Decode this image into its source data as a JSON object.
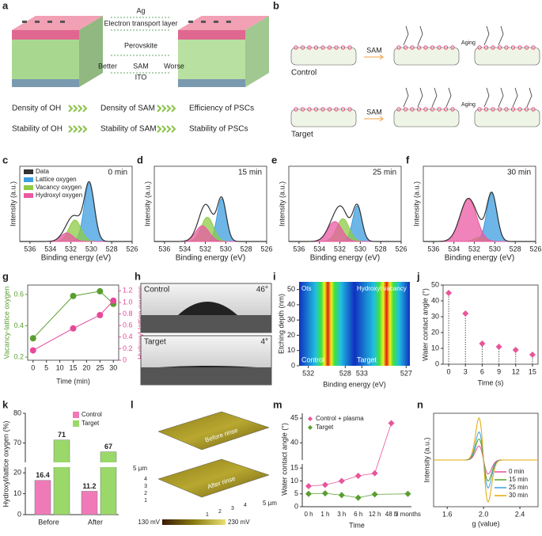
{
  "panel_labels": [
    "a",
    "b",
    "c",
    "d",
    "e",
    "f",
    "g",
    "h",
    "i",
    "j",
    "k",
    "l",
    "m",
    "n"
  ],
  "a": {
    "layers": [
      "Ag",
      "Electron transport layer",
      "Perovskite",
      "ITO"
    ],
    "sam_scale": [
      "Better",
      "SAM",
      "Worse"
    ],
    "rows": [
      [
        "Density of OH",
        "Density of SAM",
        "Efficiency of PSCs"
      ],
      [
        "Stability of OH",
        "Stability of SAM",
        "Stability of PSCs"
      ]
    ]
  },
  "b": {
    "groups": [
      "Control",
      "Target"
    ],
    "steps": [
      "SAM",
      "Aging"
    ]
  },
  "xps": {
    "xlabel": "Binding energy (eV)",
    "ylabel": "Intensity (a.u.)",
    "xlim": [
      537,
      526
    ],
    "xticks": [
      536,
      534,
      532,
      530,
      528,
      526
    ],
    "ylim": [
      0,
      1
    ],
    "legend": [
      {
        "name": "Data",
        "color": "#333333"
      },
      {
        "name": "Lattice oxygen",
        "color": "#3d9ee0"
      },
      {
        "name": "Vacancy oxygen",
        "color": "#8dcb45"
      },
      {
        "name": "Hydroxyl oxygen",
        "color": "#ea5aa3"
      }
    ],
    "panels": [
      {
        "title": "0 min",
        "peaks": [
          {
            "center": 530.2,
            "height": 0.82,
            "width": 0.5
          },
          {
            "center": 531.6,
            "height": 0.3,
            "width": 0.6
          },
          {
            "center": 532.4,
            "height": 0.12,
            "width": 0.6
          }
        ]
      },
      {
        "title": "15 min",
        "peaks": [
          {
            "center": 530.4,
            "height": 0.6,
            "width": 0.45
          },
          {
            "center": 531.8,
            "height": 0.34,
            "width": 0.6
          },
          {
            "center": 532.3,
            "height": 0.22,
            "width": 0.65
          }
        ]
      },
      {
        "title": "25 min",
        "peaks": [
          {
            "center": 530.3,
            "height": 0.5,
            "width": 0.45
          },
          {
            "center": 531.7,
            "height": 0.32,
            "width": 0.6
          },
          {
            "center": 532.5,
            "height": 0.28,
            "width": 0.7
          }
        ]
      },
      {
        "title": "30 min",
        "peaks": [
          {
            "center": 530.3,
            "height": 0.68,
            "width": 0.5
          },
          {
            "center": 531.5,
            "height": 0.06,
            "width": 0.5
          },
          {
            "center": 532.6,
            "height": 0.6,
            "width": 0.8
          }
        ]
      }
    ]
  },
  "g": {
    "xlabel": "Time (min)",
    "ylabel": "Vacancy-lattice oxygen",
    "y2label": "Hydroxyl-lattice oxygen",
    "x": [
      0,
      15,
      25,
      30
    ],
    "xlim": [
      -2,
      32
    ],
    "xticks": [
      0,
      5,
      10,
      15,
      20,
      25,
      30
    ],
    "ylim": [
      0.18,
      0.66
    ],
    "yticks": [
      0.2,
      0.4,
      0.6
    ],
    "y2lim": [
      0,
      1.3
    ],
    "y2ticks": [
      0,
      0.2,
      0.4,
      0.6,
      0.8,
      {
        "value": 1,
        "label": "1.0"
      },
      1.2
    ],
    "series": [
      {
        "color": "#5a9e2f",
        "values": [
          0.32,
          0.59,
          0.62,
          0.54
        ]
      },
      {
        "color": "#e6489a",
        "axis": "y2",
        "values": [
          0.17,
          0.55,
          0.78,
          1.03
        ]
      }
    ]
  },
  "h": {
    "rows": [
      {
        "label": "Control",
        "angle": "46°"
      },
      {
        "label": "Target",
        "angle": "4°"
      }
    ]
  },
  "i": {
    "ylabel": "Etching depth (nm)",
    "xlabel": "Binding energy (eV)",
    "ylim": [
      0,
      55
    ],
    "yticks": [
      0,
      10,
      20,
      30,
      40,
      50
    ],
    "maps": [
      {
        "label": "Ots",
        "group": "Control",
        "xlim": [
          533,
          527
        ],
        "xticks": [
          532,
          528
        ]
      },
      {
        "label": "Hydroxyl vacancy",
        "group": "Target",
        "xlim": [
          534,
          526.5
        ],
        "xticks": [
          533,
          527
        ]
      }
    ]
  },
  "j": {
    "xlabel": "Time (s)",
    "ylabel": "Water contact angle (°)",
    "x": [
      0,
      3,
      6,
      9,
      12,
      15
    ],
    "values": [
      45,
      32,
      13,
      11,
      9,
      6
    ],
    "color": "#e8559a",
    "xlim": [
      -1,
      16
    ],
    "xticks": [
      0,
      3,
      6,
      9,
      12,
      15
    ],
    "ylim": [
      0,
      50
    ],
    "yticks": [
      0,
      10,
      20,
      30,
      40,
      50
    ]
  },
  "k": {
    "ylabel": "Hydroxyl/lattice oxygen (%)",
    "categories": [
      "Before",
      "After"
    ],
    "ylim_lower": [
      0,
      22
    ],
    "ylim_upper": [
      64,
      80
    ],
    "yticks": [
      0,
      10,
      20,
      70,
      80
    ],
    "series": [
      {
        "name": "Control",
        "color": "#f07ab8",
        "values": [
          16.4,
          11.2
        ]
      },
      {
        "name": "Target",
        "color": "#9ad86a",
        "values": [
          71,
          67
        ]
      }
    ]
  },
  "l": {
    "images": [
      "Before rinse",
      "After rinse"
    ],
    "ticks": [
      1,
      2,
      3,
      4
    ],
    "end": "5 µm",
    "colorbar": [
      "130 mV",
      "230 mV"
    ]
  },
  "m": {
    "xlabel": "Time",
    "ylabel": "Water contact angle (°)",
    "categories": [
      "0 h",
      "1 h",
      "3 h",
      "6 h",
      "12 h",
      "48 h",
      "3 months"
    ],
    "ylim_lower": [
      0,
      16
    ],
    "ylim_upper": [
      37,
      46
    ],
    "yticks": [
      0,
      5,
      10,
      15,
      40,
      45
    ],
    "series": [
      {
        "name": "Control + plasma",
        "color": "#e8559a",
        "values": [
          8,
          8.5,
          10,
          12,
          13,
          44,
          null
        ]
      },
      {
        "name": "Target",
        "color": "#5a9e2f",
        "values": [
          5,
          5.2,
          4.5,
          3.5,
          4.8,
          null,
          5
        ]
      }
    ]
  },
  "n": {
    "xlabel": "g (value)",
    "ylabel": "Intensity (a.u.)",
    "xlim": [
      1.45,
      2.6
    ],
    "xticks": [
      1.6,
      {
        "value": 2,
        "label": "2.0"
      },
      2.4
    ],
    "ylim": [
      -1,
      1
    ],
    "center": 2.0,
    "width": 0.05,
    "series": [
      {
        "name": "0 min",
        "color": "#e84f9a",
        "amplitude": 0.3
      },
      {
        "name": "15 min",
        "color": "#5a9e2f",
        "amplitude": 0.45
      },
      {
        "name": "25 min",
        "color": "#3d9ee0",
        "amplitude": 0.6
      },
      {
        "name": "30 min",
        "color": "#e0a800",
        "amplitude": 0.9
      }
    ]
  }
}
